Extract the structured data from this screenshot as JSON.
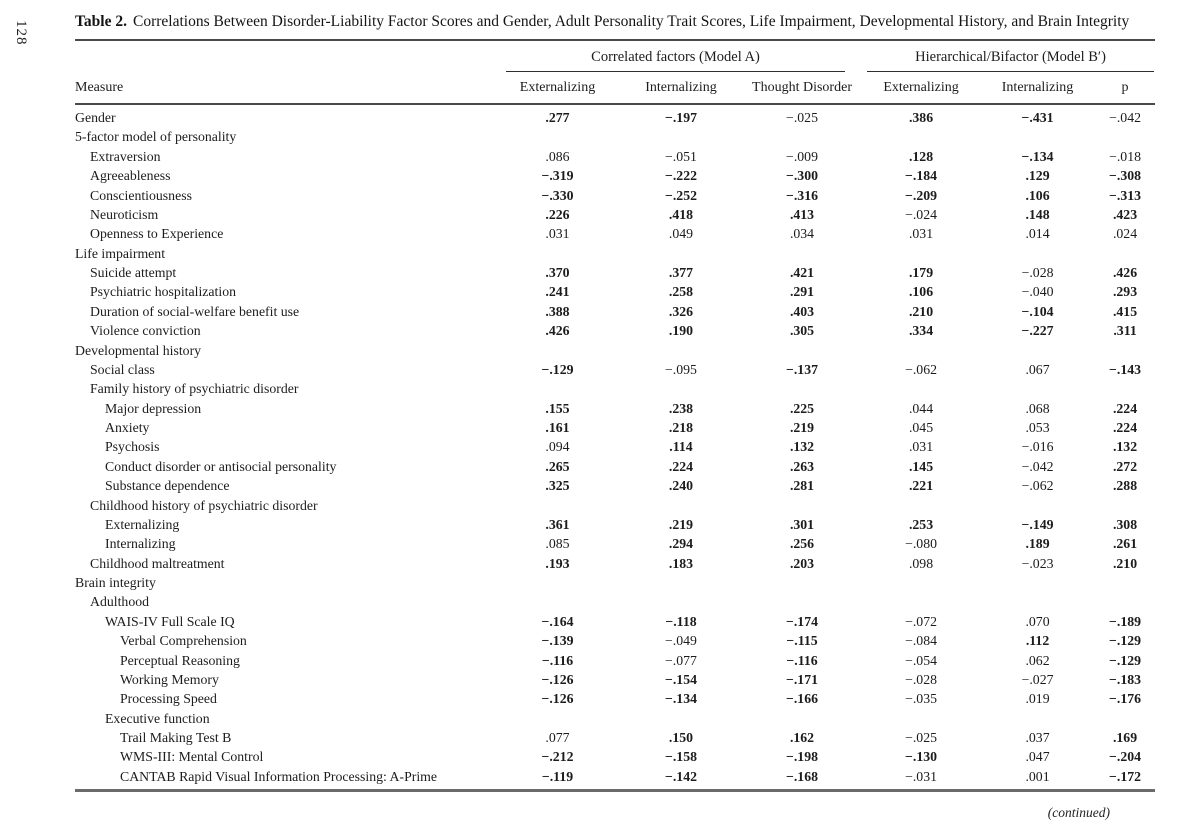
{
  "page": {
    "page_number": "128",
    "continued_note": "(continued)"
  },
  "title": {
    "label": "Table 2.",
    "text": "Correlations Between Disorder-Liability Factor Scores and Gender, Adult Personality Trait Scores, Life Impairment, Developmental History, and Brain Integrity"
  },
  "table": {
    "measure_header": "Measure",
    "groups": [
      {
        "label": "Correlated factors (Model A)"
      },
      {
        "label": "Hierarchical/Bifactor (Model B′)"
      }
    ],
    "columns": [
      "Externalizing",
      "Internalizing",
      "Thought Disorder",
      "Externalizing",
      "Internalizing",
      "p"
    ],
    "rows": [
      {
        "label": "Gender",
        "indent": 0,
        "cells": [
          {
            "v": ".277",
            "b": true
          },
          {
            "v": "−.197",
            "b": true
          },
          {
            "v": "−.025",
            "b": false
          },
          {
            "v": ".386",
            "b": true
          },
          {
            "v": "−.431",
            "b": true
          },
          {
            "v": "−.042",
            "b": false
          }
        ]
      },
      {
        "label": "5-factor model of personality",
        "indent": 0,
        "cells": []
      },
      {
        "label": "Extraversion",
        "indent": 1,
        "cells": [
          {
            "v": ".086",
            "b": false
          },
          {
            "v": "−.051",
            "b": false
          },
          {
            "v": "−.009",
            "b": false
          },
          {
            "v": ".128",
            "b": true
          },
          {
            "v": "−.134",
            "b": true
          },
          {
            "v": "−.018",
            "b": false
          }
        ]
      },
      {
        "label": "Agreeableness",
        "indent": 1,
        "cells": [
          {
            "v": "−.319",
            "b": true
          },
          {
            "v": "−.222",
            "b": true
          },
          {
            "v": "−.300",
            "b": true
          },
          {
            "v": "−.184",
            "b": true
          },
          {
            "v": ".129",
            "b": true
          },
          {
            "v": "−.308",
            "b": true
          }
        ]
      },
      {
        "label": "Conscientiousness",
        "indent": 1,
        "cells": [
          {
            "v": "−.330",
            "b": true
          },
          {
            "v": "−.252",
            "b": true
          },
          {
            "v": "−.316",
            "b": true
          },
          {
            "v": "−.209",
            "b": true
          },
          {
            "v": ".106",
            "b": true
          },
          {
            "v": "−.313",
            "b": true
          }
        ]
      },
      {
        "label": "Neuroticism",
        "indent": 1,
        "cells": [
          {
            "v": ".226",
            "b": true
          },
          {
            "v": ".418",
            "b": true
          },
          {
            "v": ".413",
            "b": true
          },
          {
            "v": "−.024",
            "b": false
          },
          {
            "v": ".148",
            "b": true
          },
          {
            "v": ".423",
            "b": true
          }
        ]
      },
      {
        "label": "Openness to Experience",
        "indent": 1,
        "cells": [
          {
            "v": ".031",
            "b": false
          },
          {
            "v": ".049",
            "b": false
          },
          {
            "v": ".034",
            "b": false
          },
          {
            "v": ".031",
            "b": false
          },
          {
            "v": ".014",
            "b": false
          },
          {
            "v": ".024",
            "b": false
          }
        ]
      },
      {
        "label": "Life impairment",
        "indent": 0,
        "cells": []
      },
      {
        "label": "Suicide attempt",
        "indent": 1,
        "cells": [
          {
            "v": ".370",
            "b": true
          },
          {
            "v": ".377",
            "b": true
          },
          {
            "v": ".421",
            "b": true
          },
          {
            "v": ".179",
            "b": true
          },
          {
            "v": "−.028",
            "b": false
          },
          {
            "v": ".426",
            "b": true
          }
        ]
      },
      {
        "label": "Psychiatric hospitalization",
        "indent": 1,
        "cells": [
          {
            "v": ".241",
            "b": true
          },
          {
            "v": ".258",
            "b": true
          },
          {
            "v": ".291",
            "b": true
          },
          {
            "v": ".106",
            "b": true
          },
          {
            "v": "−.040",
            "b": false
          },
          {
            "v": ".293",
            "b": true
          }
        ]
      },
      {
        "label": "Duration of social-welfare benefit use",
        "indent": 1,
        "cells": [
          {
            "v": ".388",
            "b": true
          },
          {
            "v": ".326",
            "b": true
          },
          {
            "v": ".403",
            "b": true
          },
          {
            "v": ".210",
            "b": true
          },
          {
            "v": "−.104",
            "b": true
          },
          {
            "v": ".415",
            "b": true
          }
        ]
      },
      {
        "label": "Violence conviction",
        "indent": 1,
        "cells": [
          {
            "v": ".426",
            "b": true
          },
          {
            "v": ".190",
            "b": true
          },
          {
            "v": ".305",
            "b": true
          },
          {
            "v": ".334",
            "b": true
          },
          {
            "v": "−.227",
            "b": true
          },
          {
            "v": ".311",
            "b": true
          }
        ]
      },
      {
        "label": "Developmental history",
        "indent": 0,
        "cells": []
      },
      {
        "label": "Social class",
        "indent": 1,
        "cells": [
          {
            "v": "−.129",
            "b": true
          },
          {
            "v": "−.095",
            "b": false
          },
          {
            "v": "−.137",
            "b": true
          },
          {
            "v": "−.062",
            "b": false
          },
          {
            "v": ".067",
            "b": false
          },
          {
            "v": "−.143",
            "b": true
          }
        ]
      },
      {
        "label": "Family history of psychiatric disorder",
        "indent": 1,
        "cells": []
      },
      {
        "label": "Major depression",
        "indent": 2,
        "cells": [
          {
            "v": ".155",
            "b": true
          },
          {
            "v": ".238",
            "b": true
          },
          {
            "v": ".225",
            "b": true
          },
          {
            "v": ".044",
            "b": false
          },
          {
            "v": ".068",
            "b": false
          },
          {
            "v": ".224",
            "b": true
          }
        ]
      },
      {
        "label": "Anxiety",
        "indent": 2,
        "cells": [
          {
            "v": ".161",
            "b": true
          },
          {
            "v": ".218",
            "b": true
          },
          {
            "v": ".219",
            "b": true
          },
          {
            "v": ".045",
            "b": false
          },
          {
            "v": ".053",
            "b": false
          },
          {
            "v": ".224",
            "b": true
          }
        ]
      },
      {
        "label": "Psychosis",
        "indent": 2,
        "cells": [
          {
            "v": ".094",
            "b": false
          },
          {
            "v": ".114",
            "b": true
          },
          {
            "v": ".132",
            "b": true
          },
          {
            "v": ".031",
            "b": false
          },
          {
            "v": "−.016",
            "b": false
          },
          {
            "v": ".132",
            "b": true
          }
        ]
      },
      {
        "label": "Conduct disorder or antisocial personality",
        "indent": 2,
        "cells": [
          {
            "v": ".265",
            "b": true
          },
          {
            "v": ".224",
            "b": true
          },
          {
            "v": ".263",
            "b": true
          },
          {
            "v": ".145",
            "b": true
          },
          {
            "v": "−.042",
            "b": false
          },
          {
            "v": ".272",
            "b": true
          }
        ]
      },
      {
        "label": "Substance dependence",
        "indent": 2,
        "cells": [
          {
            "v": ".325",
            "b": true
          },
          {
            "v": ".240",
            "b": true
          },
          {
            "v": ".281",
            "b": true
          },
          {
            "v": ".221",
            "b": true
          },
          {
            "v": "−.062",
            "b": false
          },
          {
            "v": ".288",
            "b": true
          }
        ]
      },
      {
        "label": "Childhood history of psychiatric disorder",
        "indent": 1,
        "cells": []
      },
      {
        "label": "Externalizing",
        "indent": 2,
        "cells": [
          {
            "v": ".361",
            "b": true
          },
          {
            "v": ".219",
            "b": true
          },
          {
            "v": ".301",
            "b": true
          },
          {
            "v": ".253",
            "b": true
          },
          {
            "v": "−.149",
            "b": true
          },
          {
            "v": ".308",
            "b": true
          }
        ]
      },
      {
        "label": "Internalizing",
        "indent": 2,
        "cells": [
          {
            "v": ".085",
            "b": false
          },
          {
            "v": ".294",
            "b": true
          },
          {
            "v": ".256",
            "b": true
          },
          {
            "v": "−.080",
            "b": false
          },
          {
            "v": ".189",
            "b": true
          },
          {
            "v": ".261",
            "b": true
          }
        ]
      },
      {
        "label": "Childhood maltreatment",
        "indent": 1,
        "cells": [
          {
            "v": ".193",
            "b": true
          },
          {
            "v": ".183",
            "b": true
          },
          {
            "v": ".203",
            "b": true
          },
          {
            "v": ".098",
            "b": false
          },
          {
            "v": "−.023",
            "b": false
          },
          {
            "v": ".210",
            "b": true
          }
        ]
      },
      {
        "label": "Brain integrity",
        "indent": 0,
        "cells": []
      },
      {
        "label": "Adulthood",
        "indent": 1,
        "cells": []
      },
      {
        "label": "WAIS-IV Full Scale IQ",
        "indent": 2,
        "cells": [
          {
            "v": "−.164",
            "b": true
          },
          {
            "v": "−.118",
            "b": true
          },
          {
            "v": "−.174",
            "b": true
          },
          {
            "v": "−.072",
            "b": false
          },
          {
            "v": ".070",
            "b": false
          },
          {
            "v": "−.189",
            "b": true
          }
        ]
      },
      {
        "label": "Verbal Comprehension",
        "indent": 3,
        "cells": [
          {
            "v": "−.139",
            "b": true
          },
          {
            "v": "−.049",
            "b": false
          },
          {
            "v": "−.115",
            "b": true
          },
          {
            "v": "−.084",
            "b": false
          },
          {
            "v": ".112",
            "b": true
          },
          {
            "v": "−.129",
            "b": true
          }
        ]
      },
      {
        "label": "Perceptual Reasoning",
        "indent": 3,
        "cells": [
          {
            "v": "−.116",
            "b": true
          },
          {
            "v": "−.077",
            "b": false
          },
          {
            "v": "−.116",
            "b": true
          },
          {
            "v": "−.054",
            "b": false
          },
          {
            "v": ".062",
            "b": false
          },
          {
            "v": "−.129",
            "b": true
          }
        ]
      },
      {
        "label": "Working Memory",
        "indent": 3,
        "cells": [
          {
            "v": "−.126",
            "b": true
          },
          {
            "v": "−.154",
            "b": true
          },
          {
            "v": "−.171",
            "b": true
          },
          {
            "v": "−.028",
            "b": false
          },
          {
            "v": "−.027",
            "b": false
          },
          {
            "v": "−.183",
            "b": true
          }
        ]
      },
      {
        "label": "Processing Speed",
        "indent": 3,
        "cells": [
          {
            "v": "−.126",
            "b": true
          },
          {
            "v": "−.134",
            "b": true
          },
          {
            "v": "−.166",
            "b": true
          },
          {
            "v": "−.035",
            "b": false
          },
          {
            "v": ".019",
            "b": false
          },
          {
            "v": "−.176",
            "b": true
          }
        ]
      },
      {
        "label": "Executive function",
        "indent": 2,
        "cells": []
      },
      {
        "label": "Trail Making Test B",
        "indent": 3,
        "cells": [
          {
            "v": ".077",
            "b": false
          },
          {
            "v": ".150",
            "b": true
          },
          {
            "v": ".162",
            "b": true
          },
          {
            "v": "−.025",
            "b": false
          },
          {
            "v": ".037",
            "b": false
          },
          {
            "v": ".169",
            "b": true
          }
        ]
      },
      {
        "label": "WMS-III: Mental Control",
        "indent": 3,
        "cells": [
          {
            "v": "−.212",
            "b": true
          },
          {
            "v": "−.158",
            "b": true
          },
          {
            "v": "−.198",
            "b": true
          },
          {
            "v": "−.130",
            "b": true
          },
          {
            "v": ".047",
            "b": false
          },
          {
            "v": "−.204",
            "b": true
          }
        ]
      },
      {
        "label": "CANTAB Rapid Visual Information Processing: A-Prime",
        "indent": 3,
        "cells": [
          {
            "v": "−.119",
            "b": true
          },
          {
            "v": "−.142",
            "b": true
          },
          {
            "v": "−.168",
            "b": true
          },
          {
            "v": "−.031",
            "b": false
          },
          {
            "v": ".001",
            "b": false
          },
          {
            "v": "−.172",
            "b": true
          }
        ]
      }
    ]
  }
}
